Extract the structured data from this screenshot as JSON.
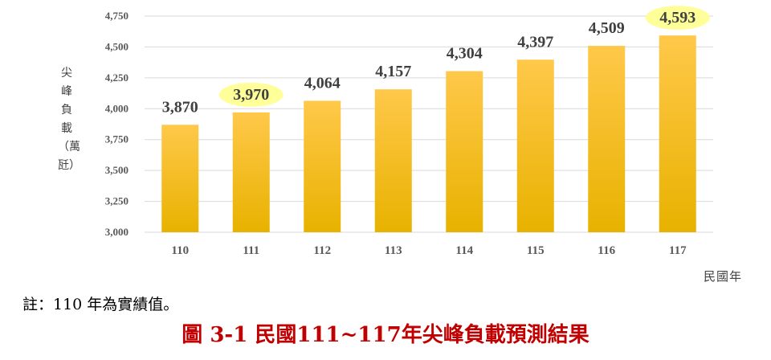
{
  "chart_data": {
    "type": "bar",
    "categories": [
      "110",
      "111",
      "112",
      "113",
      "114",
      "115",
      "116",
      "117"
    ],
    "values": [
      3870,
      3970,
      4064,
      4157,
      4304,
      4397,
      4509,
      4593
    ],
    "value_labels": [
      "3,870",
      "3,970",
      "4,064",
      "4,157",
      "4,304",
      "4,397",
      "4,509",
      "4,593"
    ],
    "highlighted_categories": [
      "111",
      "117"
    ],
    "ylabel": "尖峰負載（萬瓩）",
    "xlabel": "民國年",
    "ylim": [
      3000,
      4750
    ],
    "yticks": [
      "3,000",
      "3,250",
      "3,500",
      "3,750",
      "4,000",
      "4,250",
      "4,500",
      "4,750"
    ],
    "grid": true,
    "colors": {
      "bar_top": "#ffc84a",
      "bar_bottom": "#e8b200",
      "highlight": "#ffff99",
      "grid": "#d9d9d9"
    }
  },
  "note": "註：110 年為實績值。",
  "caption": "圖 3-1  民國111~117年尖峰負載預測結果"
}
